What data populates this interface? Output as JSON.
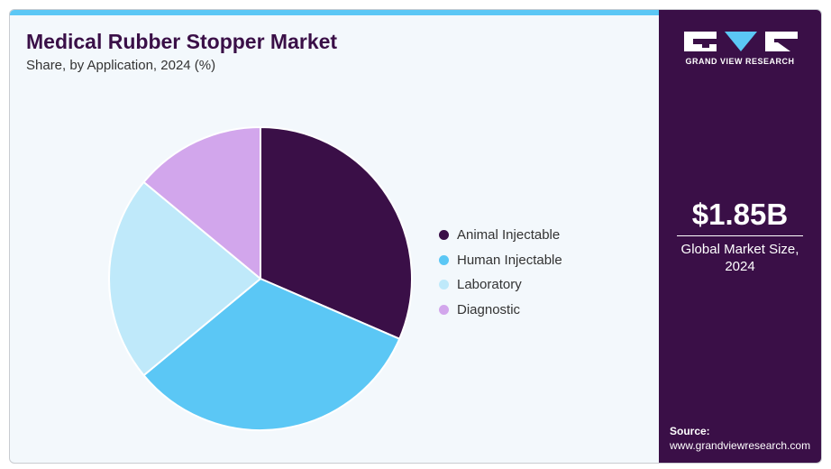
{
  "header": {
    "title": "Medical Rubber Stopper Market",
    "subtitle": "Share, by Application, 2024 (%)"
  },
  "chart_data": {
    "type": "pie",
    "title": "Medical Rubber Stopper Market",
    "subtitle": "Share, by Application, 2024 (%)",
    "categories": [
      "Animal Injectable",
      "Human Injectable",
      "Laboratory",
      "Diagnostic"
    ],
    "values": [
      31.5,
      32.5,
      22,
      14
    ],
    "colors": [
      "#3a0f47",
      "#5bc7f5",
      "#bfe9fa",
      "#d2a6ec"
    ],
    "start_angle_deg": 0,
    "direction": "clockwise",
    "legend": "right"
  },
  "sidebar": {
    "logo_text": "GRAND VIEW RESEARCH",
    "market_size": "$1.85B",
    "market_size_label_1": "Global Market Size,",
    "market_size_label_2": "2024",
    "source_label": "Source:",
    "source_url": "www.grandviewresearch.com"
  },
  "colors": {
    "accent": "#5bc7f5",
    "brand": "#3a0f47",
    "background": "#f3f8fc"
  }
}
